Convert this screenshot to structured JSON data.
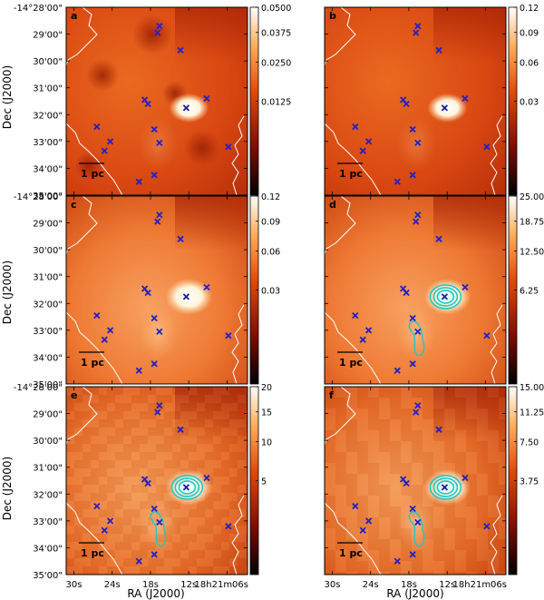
{
  "figure": {
    "ylabel": "Dec (J2000)",
    "xlabel": "RA (J2000)"
  },
  "axes": {
    "dec_ticks": [
      "-14°28'00\"",
      "29'00\"",
      "30'00\"",
      "31'00\"",
      "32'00\"",
      "33'00\"",
      "34'00\"",
      "35'00\""
    ],
    "ra_ticks": [
      "30s",
      "24s",
      "18s",
      "12s",
      "18h21m06s"
    ]
  },
  "scalebar_label": "1 pc",
  "sources": [
    {
      "ra": 16.6,
      "dec": 28.7
    },
    {
      "ra": 16.9,
      "dec": 28.95
    },
    {
      "ra": 13.3,
      "dec": 29.6
    },
    {
      "ra": 18.9,
      "dec": 31.45
    },
    {
      "ra": 18.4,
      "dec": 31.6
    },
    {
      "ra": 12.4,
      "dec": 31.75
    },
    {
      "ra": 9.2,
      "dec": 31.4
    },
    {
      "ra": 26.4,
      "dec": 32.45
    },
    {
      "ra": 17.4,
      "dec": 32.55
    },
    {
      "ra": 24.3,
      "dec": 33.0
    },
    {
      "ra": 16.6,
      "dec": 33.05
    },
    {
      "ra": 25.2,
      "dec": 33.35
    },
    {
      "ra": 5.8,
      "dec": 33.2
    },
    {
      "ra": 17.4,
      "dec": 34.25
    },
    {
      "ra": 19.8,
      "dec": 34.5
    }
  ],
  "chart_data": [
    {
      "panel": "a",
      "type": "heatmap",
      "colorbar_ticks": [
        "0.0500",
        "0.0375",
        "0.0250",
        "0.0125"
      ],
      "colorbar_values": [
        0.05,
        0.0375,
        0.025,
        0.0125
      ],
      "vmax": 0.05,
      "vmin": 0.0,
      "contours": false
    },
    {
      "panel": "b",
      "type": "heatmap",
      "colorbar_ticks": [
        "0.12",
        "0.09",
        "0.06",
        "0.03"
      ],
      "colorbar_values": [
        0.12,
        0.09,
        0.06,
        0.03
      ],
      "vmax": 0.12,
      "vmin": 0.0,
      "contours": false
    },
    {
      "panel": "c",
      "type": "heatmap",
      "colorbar_ticks": [
        "0.12",
        "0.09",
        "0.06",
        "0.03"
      ],
      "colorbar_values": [
        0.12,
        0.09,
        0.06,
        0.03
      ],
      "vmax": 0.12,
      "vmin": 0.0,
      "contours": false
    },
    {
      "panel": "d",
      "type": "heatmap",
      "colorbar_ticks": [
        "25.00",
        "18.75",
        "12.50",
        "6.25"
      ],
      "colorbar_values": [
        25.0,
        18.75,
        12.5,
        6.25
      ],
      "vmax": 25.0,
      "vmin": 0.0,
      "contours": true
    },
    {
      "panel": "e",
      "type": "heatmap",
      "colorbar_ticks": [
        "20",
        "15",
        "10",
        "5"
      ],
      "colorbar_values": [
        20,
        15,
        10,
        5
      ],
      "vmax": 20,
      "vmin": 0,
      "contours": true
    },
    {
      "panel": "f",
      "type": "heatmap",
      "colorbar_ticks": [
        "15.00",
        "11.25",
        "7.50",
        "3.75"
      ],
      "colorbar_values": [
        15.0,
        11.25,
        7.5,
        3.75
      ],
      "vmax": 15.0,
      "vmin": 0.0,
      "contours": true
    }
  ]
}
